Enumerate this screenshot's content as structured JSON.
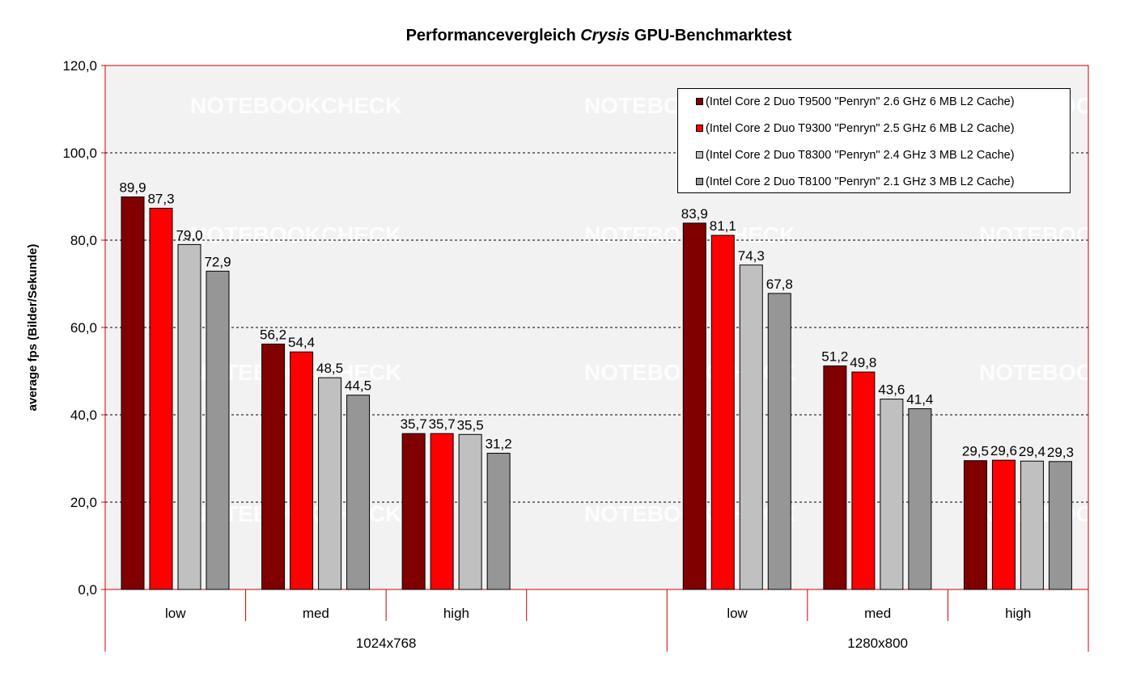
{
  "chart_data": {
    "type": "bar",
    "title_parts": [
      "Performancevergleich ",
      "Crysis",
      " GPU-Benchmarktest"
    ],
    "ylabel": "average fps (Bilder/Sekunde)",
    "xlabel": "",
    "ylim": [
      0,
      120
    ],
    "yticks": [
      "0,0",
      "20,0",
      "40,0",
      "60,0",
      "80,0",
      "100,0",
      "120,0"
    ],
    "grid": true,
    "legend_position": "top-right",
    "groups": [
      "1024x768",
      "1280x800"
    ],
    "categories": [
      "low",
      "med",
      "high",
      "",
      "low",
      "med",
      "high"
    ],
    "series": [
      {
        "name": "(Intel Core 2 Duo T9500 \"Penryn\" 2.6 GHz 6 MB L2 Cache)",
        "color": "#800000",
        "values": [
          89.9,
          56.2,
          35.7,
          null,
          83.9,
          51.2,
          29.5
        ],
        "labels": [
          "89,9",
          "56,2",
          "35,7",
          "",
          "83,9",
          "51,2",
          "29,5"
        ]
      },
      {
        "name": "(Intel Core 2 Duo T9300 \"Penryn\" 2.5 GHz 6 MB L2 Cache)",
        "color": "#ff0000",
        "values": [
          87.3,
          54.4,
          35.7,
          null,
          81.1,
          49.8,
          29.6
        ],
        "labels": [
          "87,3",
          "54,4",
          "35,7",
          "",
          "81,1",
          "49,8",
          "29,6"
        ]
      },
      {
        "name": "(Intel Core 2 Duo T8300 \"Penryn\" 2.4 GHz 3 MB L2 Cache)",
        "color": "#c0c0c0",
        "values": [
          79.0,
          48.5,
          35.5,
          null,
          74.3,
          43.6,
          29.4
        ],
        "labels": [
          "79,0",
          "48,5",
          "35,5",
          "",
          "74,3",
          "43,6",
          "29,4"
        ]
      },
      {
        "name": "(Intel Core 2 Duo T8100 \"Penryn\" 2.1 GHz 3 MB L2 Cache)",
        "color": "#969696",
        "values": [
          72.9,
          44.5,
          31.2,
          null,
          67.8,
          41.4,
          29.3
        ],
        "labels": [
          "72,9",
          "44,5",
          "31,2",
          "",
          "67,8",
          "41,4",
          "29,3"
        ]
      }
    ],
    "colors": {
      "plot_background": "#f2f2f2",
      "axis": "#cc0000",
      "grid": "#000000"
    }
  },
  "watermark": "NOTEBOOKCHECK"
}
